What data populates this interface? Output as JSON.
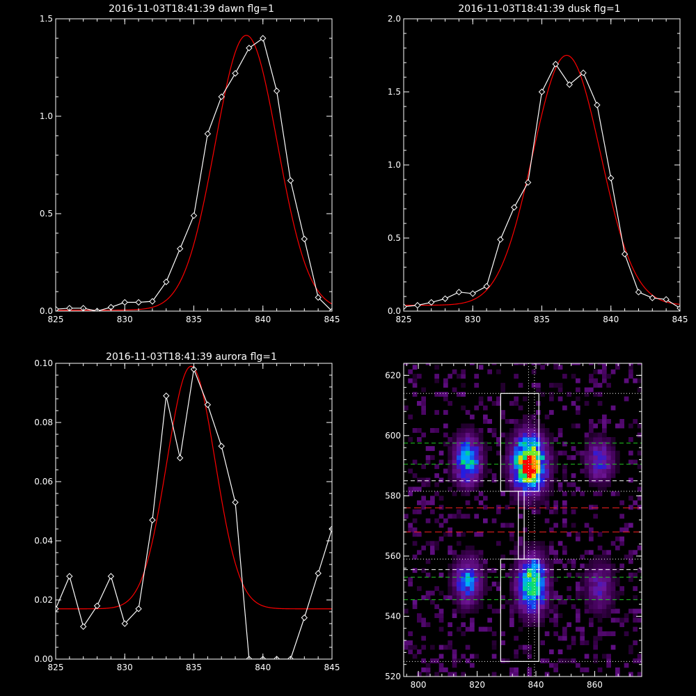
{
  "chart_data": [
    {
      "id": "dawn",
      "type": "line",
      "title": "2016-11-03T18:41:39 dawn flg=1",
      "xlim": [
        825,
        845
      ],
      "ylim": [
        0,
        1.5
      ],
      "xticks": [
        "825",
        "830",
        "835",
        "840",
        "845"
      ],
      "yticks": [
        "0.0",
        "0.5",
        "1.0",
        "1.5"
      ],
      "xtick_values": [
        825,
        830,
        835,
        840,
        845
      ],
      "ytick_values": [
        0,
        0.5,
        1.0,
        1.5
      ],
      "series": [
        {
          "role": "data",
          "color": "#ffffff",
          "marker": "diamond",
          "x": [
            825,
            826,
            827,
            828,
            829,
            830,
            831,
            832,
            833,
            834,
            835,
            836,
            837,
            838,
            839,
            840,
            841,
            842,
            843,
            844,
            845
          ],
          "y": [
            0.01,
            0.015,
            0.015,
            0.0,
            0.02,
            0.045,
            0.045,
            0.05,
            0.15,
            0.32,
            0.49,
            0.91,
            1.1,
            1.22,
            1.35,
            1.4,
            1.13,
            0.67,
            0.37,
            0.07,
            0.0
          ]
        },
        {
          "role": "fit",
          "color": "#ff0000",
          "kind": "gaussian",
          "center": 838.8,
          "sigma": 2.25,
          "amplitude": 1.41,
          "baseline": 0.005
        }
      ]
    },
    {
      "id": "dusk",
      "type": "line",
      "title": "2016-11-03T18:41:39 dusk flg=1",
      "xlim": [
        825,
        845
      ],
      "ylim": [
        0,
        2.0
      ],
      "xticks": [
        "825",
        "830",
        "835",
        "840",
        "845"
      ],
      "yticks": [
        "0.0",
        "0.5",
        "1.0",
        "1.5",
        "2.0"
      ],
      "xtick_values": [
        825,
        830,
        835,
        840,
        845
      ],
      "ytick_values": [
        0,
        0.5,
        1.0,
        1.5,
        2.0
      ],
      "series": [
        {
          "role": "data",
          "color": "#ffffff",
          "marker": "diamond",
          "x": [
            825,
            826,
            827,
            828,
            829,
            830,
            831,
            832,
            833,
            834,
            835,
            836,
            837,
            838,
            839,
            840,
            841,
            842,
            843,
            844,
            845
          ],
          "y": [
            0.03,
            0.04,
            0.06,
            0.085,
            0.13,
            0.12,
            0.17,
            0.49,
            0.71,
            0.88,
            1.5,
            1.69,
            1.55,
            1.63,
            1.41,
            0.91,
            0.39,
            0.13,
            0.09,
            0.08,
            0.02
          ]
        },
        {
          "role": "fit",
          "color": "#ff0000",
          "kind": "gaussian",
          "center": 836.8,
          "sigma": 2.45,
          "amplitude": 1.71,
          "baseline": 0.04
        }
      ]
    },
    {
      "id": "aurora",
      "type": "line",
      "title": "2016-11-03T18:41:39 aurora flg=1",
      "xlim": [
        825,
        845
      ],
      "ylim": [
        0,
        0.1
      ],
      "xticks": [
        "825",
        "830",
        "835",
        "840",
        "845"
      ],
      "yticks": [
        "0.00",
        "0.02",
        "0.04",
        "0.06",
        "0.08",
        "0.10"
      ],
      "xtick_values": [
        825,
        830,
        835,
        840,
        845
      ],
      "ytick_values": [
        0,
        0.02,
        0.04,
        0.06,
        0.08,
        0.1
      ],
      "series": [
        {
          "role": "data",
          "color": "#ffffff",
          "marker": "diamond",
          "x": [
            825,
            826,
            827,
            828,
            829,
            830,
            831,
            832,
            833,
            834,
            835,
            836,
            837,
            838,
            839,
            840,
            841,
            842,
            843,
            844,
            845
          ],
          "y": [
            0.017,
            0.028,
            0.011,
            0.018,
            0.028,
            0.012,
            0.017,
            0.047,
            0.089,
            0.068,
            0.098,
            0.086,
            0.072,
            0.053,
            0.0,
            0.0,
            0.0,
            0.0,
            0.014,
            0.029,
            0.044
          ]
        },
        {
          "role": "fit",
          "color": "#ff0000",
          "kind": "gaussian",
          "center": 834.8,
          "sigma": 1.75,
          "amplitude": 0.082,
          "baseline": 0.017
        }
      ]
    },
    {
      "id": "image",
      "type": "heatmap",
      "title": "",
      "xlim": [
        795,
        876
      ],
      "ylim": [
        520,
        624
      ],
      "xticks": [
        "800",
        "820",
        "840",
        "860"
      ],
      "yticks": [
        "520",
        "540",
        "560",
        "580",
        "600",
        "620"
      ],
      "xtick_values": [
        800,
        820,
        840,
        860
      ],
      "ytick_values": [
        520,
        540,
        560,
        580,
        600,
        620
      ],
      "colors": {
        "dotted": "#ffffff",
        "green": "#22cc22",
        "red": "#ff2222",
        "white_dash": "#ffffff"
      },
      "spots": [
        {
          "x": 816,
          "y": 591,
          "sx": 3.2,
          "sy": 5.5,
          "peak": 0.62
        },
        {
          "x": 837,
          "y": 590,
          "sx": 4.0,
          "sy": 6.5,
          "peak": 1.0
        },
        {
          "x": 861,
          "y": 591,
          "sx": 3.2,
          "sy": 5.0,
          "peak": 0.4
        },
        {
          "x": 816,
          "y": 551,
          "sx": 3.2,
          "sy": 5.5,
          "peak": 0.5
        },
        {
          "x": 838,
          "y": 550,
          "sx": 3.5,
          "sy": 6.5,
          "peak": 0.78
        },
        {
          "x": 861,
          "y": 549,
          "sx": 3.5,
          "sy": 6.0,
          "peak": 0.3
        }
      ],
      "dotted_hlines": [
        614,
        581.5,
        559,
        525
      ],
      "green_dash_hlines": [
        597.5,
        590.5,
        553,
        545.5
      ],
      "white_dash_hlines": [
        585,
        555.5
      ],
      "red_dash_hlines": [
        576,
        568
      ],
      "dotted_vlines": [
        837.5,
        839.5
      ],
      "boxes": [
        {
          "x0": 828,
          "x1": 841,
          "y0": 581.5,
          "y1": 614
        },
        {
          "x0": 828,
          "x1": 841,
          "y0": 525,
          "y1": 559
        }
      ],
      "connector": {
        "x0": 834,
        "x1": 836,
        "y0": 559,
        "y1": 581.5
      }
    }
  ]
}
